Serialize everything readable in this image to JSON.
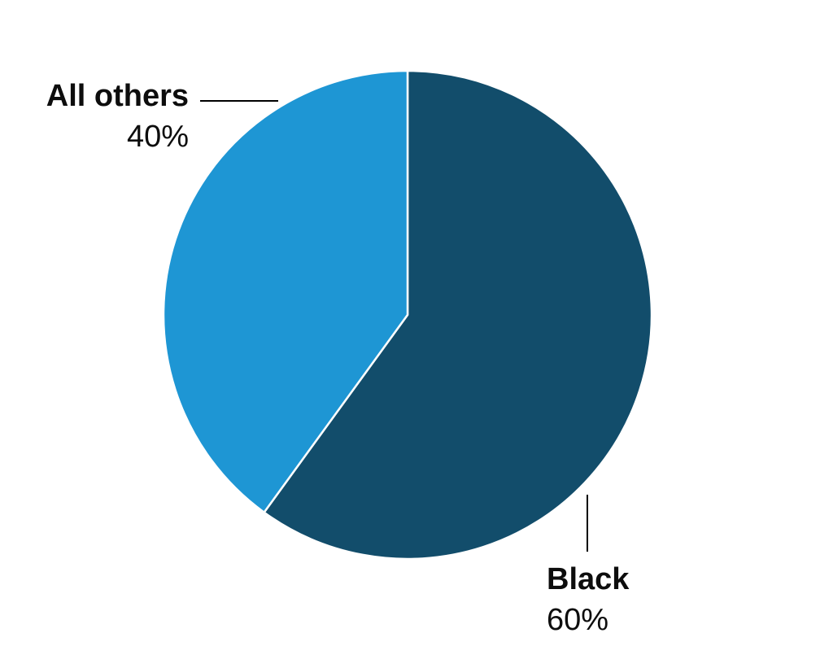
{
  "chart_data": {
    "type": "pie",
    "slices": [
      {
        "label": "Black",
        "value": 60,
        "value_label": "60%",
        "color": "#124d6b"
      },
      {
        "label": "All others",
        "value": 40,
        "value_label": "40%",
        "color": "#1e96d4"
      }
    ],
    "start_angle": "12 o'clock",
    "direction": "clockwise",
    "slice_border_color": "#ffffff",
    "leader_line_color": "#000000"
  }
}
